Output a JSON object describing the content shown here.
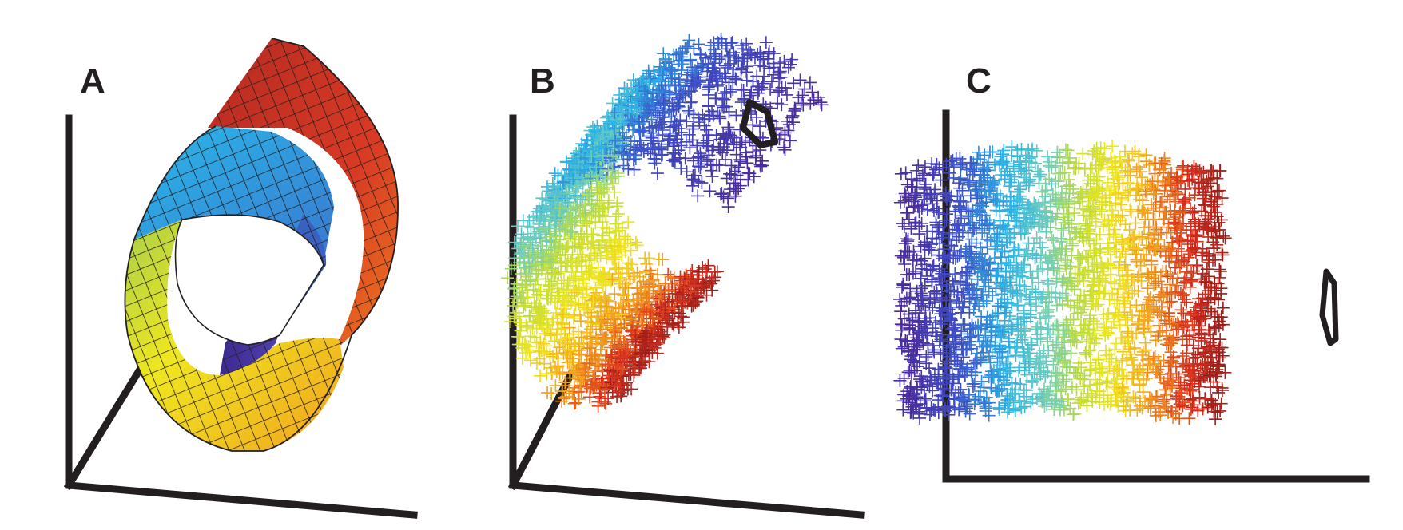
{
  "panels": [
    {
      "letter": "A"
    },
    {
      "letter": "B"
    },
    {
      "letter": "C"
    }
  ],
  "colors": {
    "axis": "#231f20",
    "purple": "#4b2a9b",
    "blue": "#2ab3e6",
    "yellow": "#f0e61e",
    "red": "#c8281e"
  }
}
